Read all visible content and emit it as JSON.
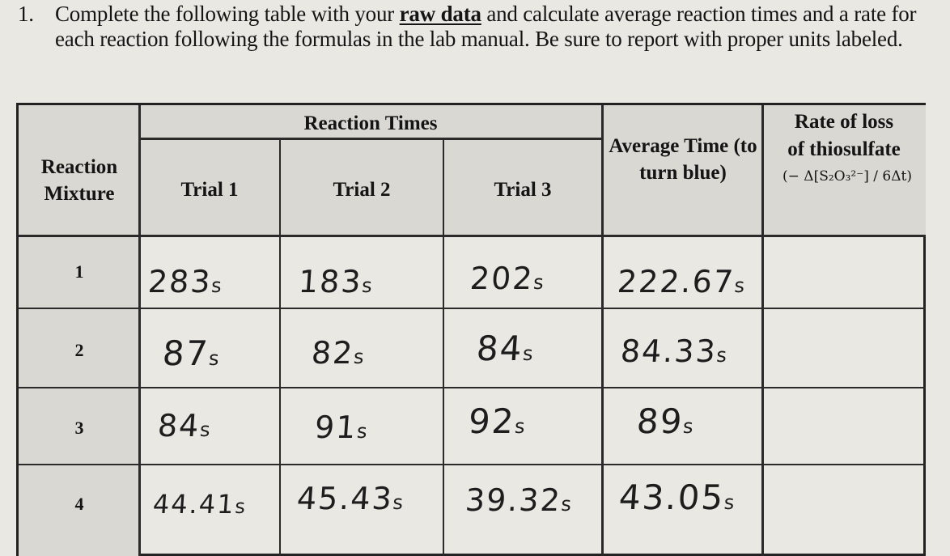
{
  "question": {
    "number": "1.",
    "text_before": "Complete the following table with your",
    "emphasis": "raw data",
    "text_after": "and calculate average reaction times and a rate for each reaction following the formulas in the lab manual. Be sure to report with proper units labeled."
  },
  "table": {
    "headers": {
      "mixture": "Reaction Mixture",
      "reaction_times": "Reaction Times",
      "trial1": "Trial 1",
      "trial2": "Trial 2",
      "trial3": "Trial 3",
      "average": "Average Time (to turn blue)",
      "rate_line1": "Rate of loss",
      "rate_line2": "of thiosulfate",
      "rate_formula": "(− Δ[S₂O₃²⁻] / 6Δt)"
    },
    "rows": [
      {
        "mixture": "1",
        "trial1": "283",
        "trial2": "183",
        "trial3": "202",
        "average": "222.67",
        "unit": "s",
        "rate": ""
      },
      {
        "mixture": "2",
        "trial1": "87",
        "trial2": "82",
        "trial3": "84",
        "average": "84.33",
        "unit": "s",
        "rate": ""
      },
      {
        "mixture": "3",
        "trial1": "84",
        "trial2": "91",
        "trial3": "92",
        "average": "89",
        "unit": "s",
        "rate": ""
      },
      {
        "mixture": "4",
        "trial1": "44.41",
        "trial2": "45.43",
        "trial3": "39.32",
        "average": "43.05",
        "unit": "s",
        "rate": ""
      }
    ]
  }
}
